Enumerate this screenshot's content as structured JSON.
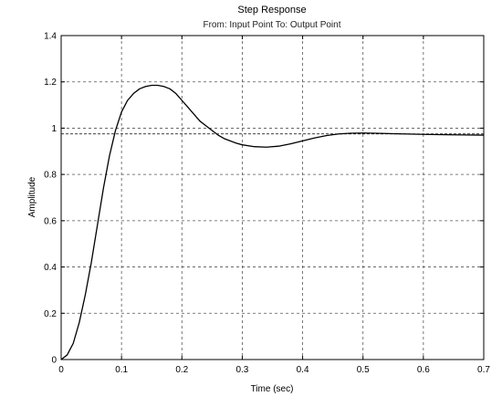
{
  "chart_data": {
    "type": "line",
    "title": "Step Response",
    "subtitle": "From: Input Point  To: Output Point",
    "xlabel": "Time (sec)",
    "ylabel": "Amplitude",
    "xlim": [
      0,
      0.7
    ],
    "ylim": [
      0,
      1.4
    ],
    "xticks": [
      0,
      0.1,
      0.2,
      0.3,
      0.4,
      0.5,
      0.6,
      0.7
    ],
    "xtick_labels": [
      "0",
      "0.1",
      "0.2",
      "0.3",
      "0.4",
      "0.5",
      "0.6",
      "0.7"
    ],
    "yticks": [
      0,
      0.2,
      0.4,
      0.6,
      0.8,
      1,
      1.2,
      1.4
    ],
    "ytick_labels": [
      "0",
      "0.2",
      "0.4",
      "0.6",
      "0.8",
      "1",
      "1.2",
      "1.4"
    ],
    "grid": true,
    "steady_state_reference": 0.975,
    "series": [
      {
        "x": [
          0,
          0.01,
          0.02,
          0.03,
          0.04,
          0.05,
          0.06,
          0.07,
          0.08,
          0.09,
          0.1,
          0.11,
          0.12,
          0.13,
          0.14,
          0.15,
          0.16,
          0.17,
          0.18,
          0.19,
          0.2,
          0.21,
          0.22,
          0.23,
          0.24,
          0.25,
          0.26,
          0.27,
          0.28,
          0.29,
          0.3,
          0.32,
          0.34,
          0.36,
          0.38,
          0.4,
          0.42,
          0.44,
          0.46,
          0.48,
          0.5,
          0.52,
          0.55,
          0.6,
          0.65,
          0.7
        ],
        "y": [
          0,
          0.02,
          0.07,
          0.16,
          0.28,
          0.42,
          0.58,
          0.74,
          0.88,
          0.99,
          1.07,
          1.12,
          1.15,
          1.17,
          1.18,
          1.185,
          1.185,
          1.18,
          1.17,
          1.15,
          1.12,
          1.09,
          1.06,
          1.03,
          1.01,
          0.99,
          0.97,
          0.955,
          0.945,
          0.935,
          0.928,
          0.92,
          0.918,
          0.922,
          0.932,
          0.945,
          0.958,
          0.968,
          0.975,
          0.978,
          0.979,
          0.978,
          0.976,
          0.973,
          0.971,
          0.97
        ],
        "color": "#000000"
      }
    ]
  }
}
